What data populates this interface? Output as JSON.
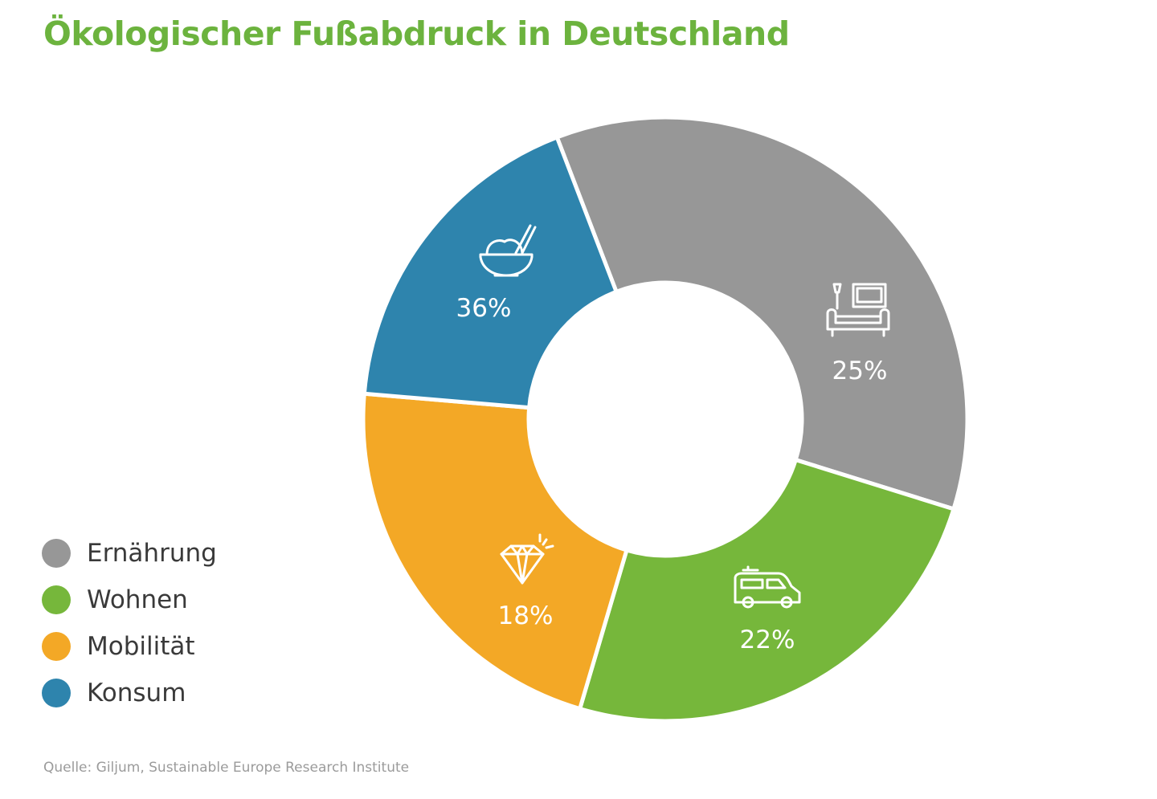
{
  "chart_data": {
    "type": "pie",
    "title": "Ökologischer Fußabdruck in Deutschland",
    "categories": [
      "Ernährung",
      "Wohnen",
      "Mobilität",
      "Konsum"
    ],
    "values": [
      36,
      25,
      22,
      18
    ],
    "labels": [
      "36%",
      "25%",
      "22%",
      "18%"
    ],
    "colors": [
      "#979797",
      "#76b73b",
      "#f3a826",
      "#2e84ad"
    ],
    "icons": [
      "rice-bowl-icon",
      "living-room-icon",
      "van-icon",
      "diamond-icon"
    ],
    "donut": true,
    "legend": "bottom-left",
    "title_color": "#6cb33e",
    "label_color": "#ffffff"
  },
  "source": "Quelle: Giljum, Sustainable Europe Research Institute"
}
